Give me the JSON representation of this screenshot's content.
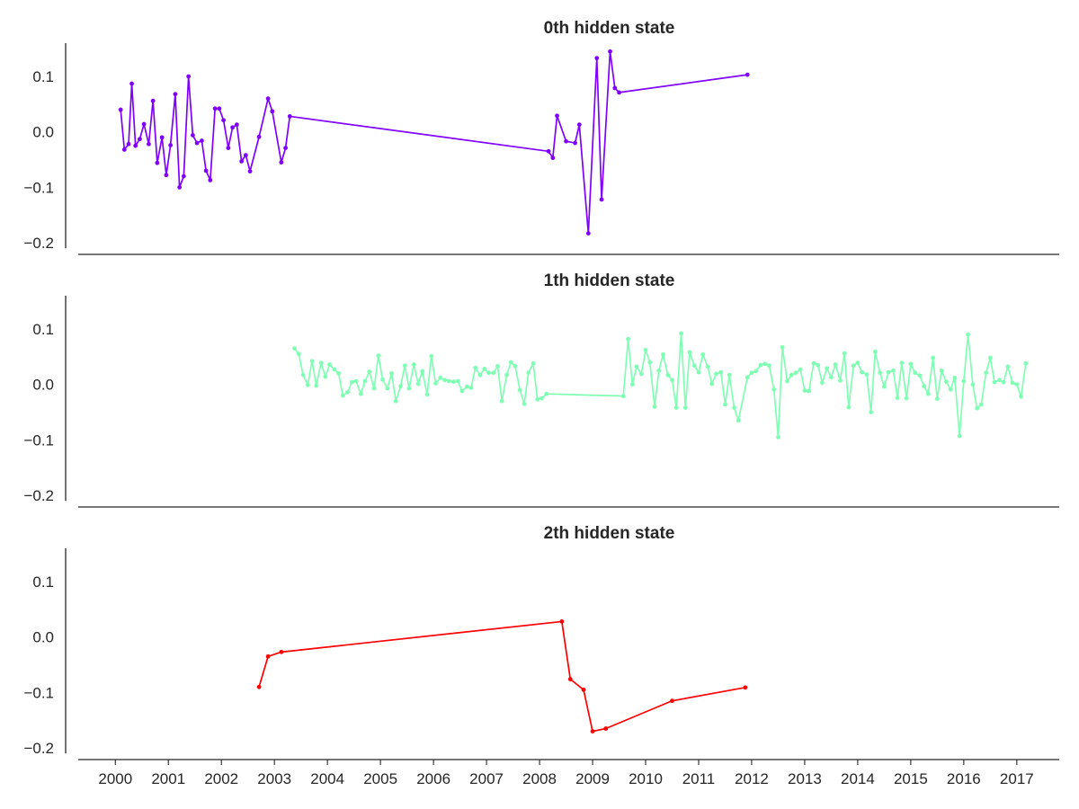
{
  "chart_data": {
    "type": "line",
    "x_tick_labels": [
      "2000",
      "2001",
      "2002",
      "2003",
      "2004",
      "2005",
      "2006",
      "2007",
      "2008",
      "2009",
      "2010",
      "2011",
      "2012",
      "2013",
      "2014",
      "2015",
      "2016",
      "2017"
    ],
    "y_ticks": [
      0.1,
      0.0,
      -0.1,
      -0.2
    ],
    "y_tick_labels": [
      "0.1",
      "0.0",
      "−0.1",
      "−0.2"
    ],
    "ylim": [
      -0.2,
      0.16
    ],
    "xlim": [
      1999.3,
      2017.8
    ],
    "grid": false,
    "panels": [
      {
        "title": "0th hidden state",
        "color": "#8000ff",
        "points": [
          [
            2000.1,
            0.04
          ],
          [
            2000.17,
            -0.032
          ],
          [
            2000.25,
            -0.022
          ],
          [
            2000.31,
            0.087
          ],
          [
            2000.38,
            -0.025
          ],
          [
            2000.46,
            -0.013
          ],
          [
            2000.54,
            0.014
          ],
          [
            2000.63,
            -0.022
          ],
          [
            2000.71,
            0.056
          ],
          [
            2000.79,
            -0.056
          ],
          [
            2000.88,
            -0.01
          ],
          [
            2000.96,
            -0.078
          ],
          [
            2001.04,
            -0.024
          ],
          [
            2001.13,
            0.068
          ],
          [
            2001.21,
            -0.1
          ],
          [
            2001.29,
            -0.08
          ],
          [
            2001.38,
            0.1
          ],
          [
            2001.46,
            -0.006
          ],
          [
            2001.54,
            -0.02
          ],
          [
            2001.63,
            -0.016
          ],
          [
            2001.71,
            -0.07
          ],
          [
            2001.79,
            -0.087
          ],
          [
            2001.88,
            0.042
          ],
          [
            2001.96,
            0.042
          ],
          [
            2002.04,
            0.021
          ],
          [
            2002.13,
            -0.029
          ],
          [
            2002.21,
            0.008
          ],
          [
            2002.29,
            0.013
          ],
          [
            2002.38,
            -0.053
          ],
          [
            2002.46,
            -0.042
          ],
          [
            2002.54,
            -0.071
          ],
          [
            2002.71,
            -0.009
          ],
          [
            2002.88,
            0.06
          ],
          [
            2002.96,
            0.037
          ],
          [
            2003.13,
            -0.055
          ],
          [
            2003.21,
            -0.029
          ],
          [
            2003.29,
            0.028
          ],
          [
            2008.17,
            -0.035
          ],
          [
            2008.25,
            -0.047
          ],
          [
            2008.33,
            0.029
          ],
          [
            2008.5,
            -0.017
          ],
          [
            2008.67,
            -0.02
          ],
          [
            2008.75,
            0.013
          ],
          [
            2008.92,
            -0.183
          ],
          [
            2009.08,
            0.133
          ],
          [
            2009.17,
            -0.122
          ],
          [
            2009.33,
            0.145
          ],
          [
            2009.42,
            0.079
          ],
          [
            2009.5,
            0.071
          ],
          [
            2011.92,
            0.103
          ]
        ]
      },
      {
        "title": "1th hidden state",
        "color": "#80ffb4",
        "points": [
          [
            2003.38,
            0.065
          ],
          [
            2003.46,
            0.055
          ],
          [
            2003.54,
            0.017
          ],
          [
            2003.63,
            -0.001
          ],
          [
            2003.71,
            0.042
          ],
          [
            2003.79,
            -0.002
          ],
          [
            2003.88,
            0.039
          ],
          [
            2003.96,
            0.014
          ],
          [
            2004.04,
            0.036
          ],
          [
            2004.13,
            0.027
          ],
          [
            2004.21,
            0.02
          ],
          [
            2004.29,
            -0.02
          ],
          [
            2004.38,
            -0.014
          ],
          [
            2004.46,
            0.004
          ],
          [
            2004.54,
            0.006
          ],
          [
            2004.63,
            -0.017
          ],
          [
            2004.71,
            0.006
          ],
          [
            2004.79,
            0.023
          ],
          [
            2004.88,
            -0.007
          ],
          [
            2004.96,
            0.052
          ],
          [
            2005.04,
            0.009
          ],
          [
            2005.13,
            -0.007
          ],
          [
            2005.21,
            0.02
          ],
          [
            2005.29,
            -0.03
          ],
          [
            2005.38,
            -0.003
          ],
          [
            2005.46,
            0.034
          ],
          [
            2005.54,
            -0.007
          ],
          [
            2005.63,
            0.036
          ],
          [
            2005.71,
            0.001
          ],
          [
            2005.79,
            0.024
          ],
          [
            2005.88,
            -0.018
          ],
          [
            2005.96,
            0.051
          ],
          [
            2006.04,
            0.002
          ],
          [
            2006.13,
            0.012
          ],
          [
            2006.21,
            0.008
          ],
          [
            2006.29,
            0.006
          ],
          [
            2006.38,
            0.005
          ],
          [
            2006.46,
            0.006
          ],
          [
            2006.54,
            -0.012
          ],
          [
            2006.63,
            -0.004
          ],
          [
            2006.71,
            -0.006
          ],
          [
            2006.79,
            0.03
          ],
          [
            2006.88,
            0.017
          ],
          [
            2006.96,
            0.028
          ],
          [
            2007.04,
            0.021
          ],
          [
            2007.13,
            0.021
          ],
          [
            2007.21,
            0.033
          ],
          [
            2007.29,
            -0.03
          ],
          [
            2007.38,
            0.017
          ],
          [
            2007.46,
            0.04
          ],
          [
            2007.54,
            0.033
          ],
          [
            2007.63,
            -0.01
          ],
          [
            2007.71,
            -0.035
          ],
          [
            2007.79,
            0.021
          ],
          [
            2007.88,
            0.038
          ],
          [
            2007.96,
            -0.027
          ],
          [
            2008.04,
            -0.025
          ],
          [
            2008.13,
            -0.017
          ],
          [
            2009.58,
            -0.021
          ],
          [
            2009.67,
            0.082
          ],
          [
            2009.75,
            0.0
          ],
          [
            2009.83,
            0.032
          ],
          [
            2009.92,
            0.019
          ],
          [
            2010.0,
            0.062
          ],
          [
            2010.08,
            0.04
          ],
          [
            2010.17,
            -0.04
          ],
          [
            2010.25,
            0.025
          ],
          [
            2010.33,
            0.054
          ],
          [
            2010.42,
            0.017
          ],
          [
            2010.5,
            0.008
          ],
          [
            2010.58,
            -0.042
          ],
          [
            2010.67,
            0.092
          ],
          [
            2010.75,
            -0.042
          ],
          [
            2010.83,
            0.058
          ],
          [
            2010.92,
            0.034
          ],
          [
            2011.0,
            0.022
          ],
          [
            2011.08,
            0.054
          ],
          [
            2011.17,
            0.032
          ],
          [
            2011.25,
            0.001
          ],
          [
            2011.33,
            0.019
          ],
          [
            2011.42,
            0.022
          ],
          [
            2011.5,
            -0.036
          ],
          [
            2011.58,
            0.017
          ],
          [
            2011.67,
            -0.042
          ],
          [
            2011.75,
            -0.065
          ],
          [
            2011.92,
            0.013
          ],
          [
            2012.0,
            0.021
          ],
          [
            2012.08,
            0.024
          ],
          [
            2012.17,
            0.035
          ],
          [
            2012.25,
            0.037
          ],
          [
            2012.33,
            0.034
          ],
          [
            2012.42,
            -0.009
          ],
          [
            2012.5,
            -0.095
          ],
          [
            2012.58,
            0.067
          ],
          [
            2012.67,
            0.006
          ],
          [
            2012.75,
            0.017
          ],
          [
            2012.83,
            0.021
          ],
          [
            2012.92,
            0.027
          ],
          [
            2013.0,
            -0.011
          ],
          [
            2013.08,
            -0.012
          ],
          [
            2013.17,
            0.038
          ],
          [
            2013.25,
            0.035
          ],
          [
            2013.33,
            0.003
          ],
          [
            2013.42,
            0.029
          ],
          [
            2013.5,
            0.013
          ],
          [
            2013.58,
            0.036
          ],
          [
            2013.67,
            0.007
          ],
          [
            2013.75,
            0.056
          ],
          [
            2013.83,
            -0.041
          ],
          [
            2013.92,
            0.034
          ],
          [
            2014.0,
            0.039
          ],
          [
            2014.08,
            0.022
          ],
          [
            2014.17,
            0.018
          ],
          [
            2014.25,
            -0.05
          ],
          [
            2014.33,
            0.059
          ],
          [
            2014.42,
            0.021
          ],
          [
            2014.5,
            -0.004
          ],
          [
            2014.58,
            0.022
          ],
          [
            2014.67,
            0.025
          ],
          [
            2014.75,
            -0.024
          ],
          [
            2014.83,
            0.039
          ],
          [
            2014.92,
            -0.025
          ],
          [
            2015.0,
            0.037
          ],
          [
            2015.08,
            0.021
          ],
          [
            2015.17,
            0.016
          ],
          [
            2015.25,
            -0.003
          ],
          [
            2015.33,
            -0.017
          ],
          [
            2015.42,
            0.048
          ],
          [
            2015.5,
            -0.026
          ],
          [
            2015.58,
            0.025
          ],
          [
            2015.67,
            0.005
          ],
          [
            2015.75,
            -0.009
          ],
          [
            2015.83,
            0.012
          ],
          [
            2015.92,
            -0.093
          ],
          [
            2016.0,
            0.006
          ],
          [
            2016.08,
            0.09
          ],
          [
            2016.17,
            0.0
          ],
          [
            2016.25,
            -0.043
          ],
          [
            2016.33,
            -0.036
          ],
          [
            2016.42,
            0.021
          ],
          [
            2016.5,
            0.048
          ],
          [
            2016.58,
            0.004
          ],
          [
            2016.67,
            0.008
          ],
          [
            2016.75,
            0.004
          ],
          [
            2016.83,
            0.032
          ],
          [
            2016.92,
            0.003
          ],
          [
            2017.0,
            0.0
          ],
          [
            2017.08,
            -0.022
          ],
          [
            2017.17,
            0.038
          ]
        ]
      },
      {
        "title": "2th hidden state",
        "color": "#ff0000",
        "points": [
          [
            2002.71,
            -0.09
          ],
          [
            2002.88,
            -0.035
          ],
          [
            2003.13,
            -0.027
          ],
          [
            2008.42,
            0.028
          ],
          [
            2008.58,
            -0.076
          ],
          [
            2008.83,
            -0.095
          ],
          [
            2009.0,
            -0.17
          ],
          [
            2009.25,
            -0.165
          ],
          [
            2010.5,
            -0.115
          ],
          [
            2011.88,
            -0.091
          ]
        ]
      }
    ]
  }
}
